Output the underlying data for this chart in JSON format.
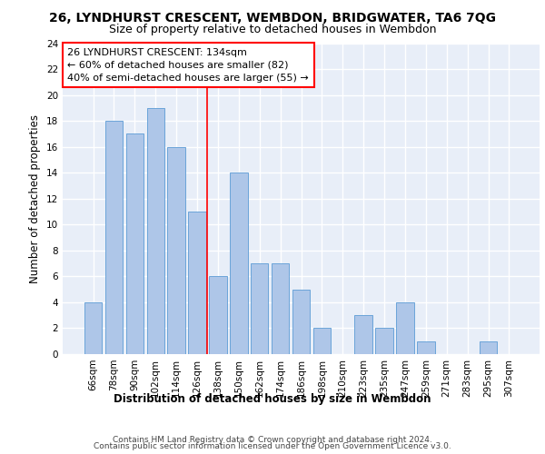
{
  "title1": "26, LYNDHURST CRESCENT, WEMBDON, BRIDGWATER, TA6 7QG",
  "title2": "Size of property relative to detached houses in Wembdon",
  "xlabel": "Distribution of detached houses by size in Wembdon",
  "ylabel": "Number of detached properties",
  "categories": [
    "66sqm",
    "78sqm",
    "90sqm",
    "102sqm",
    "114sqm",
    "126sqm",
    "138sqm",
    "150sqm",
    "162sqm",
    "174sqm",
    "186sqm",
    "198sqm",
    "210sqm",
    "223sqm",
    "235sqm",
    "247sqm",
    "259sqm",
    "271sqm",
    "283sqm",
    "295sqm",
    "307sqm"
  ],
  "values": [
    4,
    18,
    17,
    19,
    16,
    11,
    6,
    14,
    7,
    7,
    5,
    2,
    0,
    3,
    2,
    4,
    1,
    0,
    0,
    1,
    0
  ],
  "bar_color": "#aec6e8",
  "bar_edge_color": "#5b9bd5",
  "vline_x_index": 5.5,
  "annotation_text_line1": "26 LYNDHURST CRESCENT: 134sqm",
  "annotation_text_line2": "← 60% of detached houses are smaller (82)",
  "annotation_text_line3": "40% of semi-detached houses are larger (55) →",
  "annotation_box_color": "white",
  "annotation_box_edge_color": "red",
  "vline_color": "red",
  "ylim": [
    0,
    24
  ],
  "yticks": [
    0,
    2,
    4,
    6,
    8,
    10,
    12,
    14,
    16,
    18,
    20,
    22,
    24
  ],
  "footer1": "Contains HM Land Registry data © Crown copyright and database right 2024.",
  "footer2": "Contains public sector information licensed under the Open Government Licence v3.0.",
  "background_color": "#e8eef8",
  "grid_color": "#ffffff",
  "title1_fontsize": 10,
  "title2_fontsize": 9,
  "axis_label_fontsize": 8.5,
  "tick_fontsize": 7.5,
  "annotation_fontsize": 8,
  "footer_fontsize": 6.5
}
